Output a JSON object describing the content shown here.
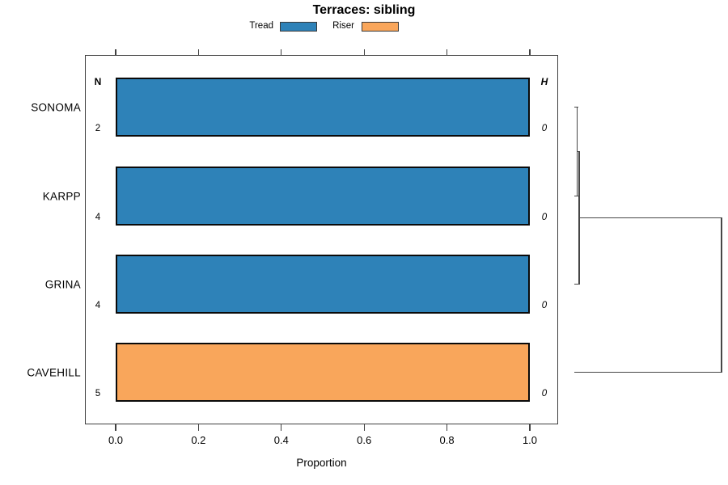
{
  "title": "Terraces: sibling",
  "legend": {
    "items": [
      {
        "label": "Tread",
        "color": "#2e82b8"
      },
      {
        "label": "Riser",
        "color": "#f9a65b"
      }
    ]
  },
  "columns": {
    "n_header": "N",
    "h_header": "H"
  },
  "axis": {
    "xlabel": "Proportion",
    "ticks": [
      "0.0",
      "0.2",
      "0.4",
      "0.6",
      "0.8",
      "1.0"
    ],
    "tick_values": [
      0,
      0.2,
      0.4,
      0.6,
      0.8,
      1.0
    ]
  },
  "chart_data": {
    "type": "bar",
    "orientation": "horizontal",
    "stacked": true,
    "title": "Terraces: sibling",
    "xlabel": "Proportion",
    "xlim": [
      0,
      1
    ],
    "grid": false,
    "legend_position": "top",
    "categories": [
      "SONOMA",
      "KARPP",
      "GRINA",
      "CAVEHILL"
    ],
    "series": [
      {
        "name": "Tread",
        "color": "#2e82b8",
        "values": [
          1.0,
          1.0,
          1.0,
          0
        ]
      },
      {
        "name": "Riser",
        "color": "#f9a65b",
        "values": [
          0,
          0,
          0,
          1.0
        ]
      }
    ],
    "n": [
      2,
      4,
      4,
      5
    ],
    "h": [
      0,
      0,
      0,
      0
    ],
    "dendrogram": {
      "leaves": [
        "SONOMA",
        "KARPP",
        "GRINA",
        "CAVEHILL"
      ],
      "merges": [
        {
          "key": "c1",
          "a": "SONOMA",
          "b": "KARPP",
          "height": 0.02
        },
        {
          "key": "c2",
          "a": "c1",
          "b": "GRINA",
          "height": 0.033
        },
        {
          "key": "c3",
          "a": "c2",
          "b": "CAVEHILL",
          "height": 1.0
        }
      ]
    }
  }
}
